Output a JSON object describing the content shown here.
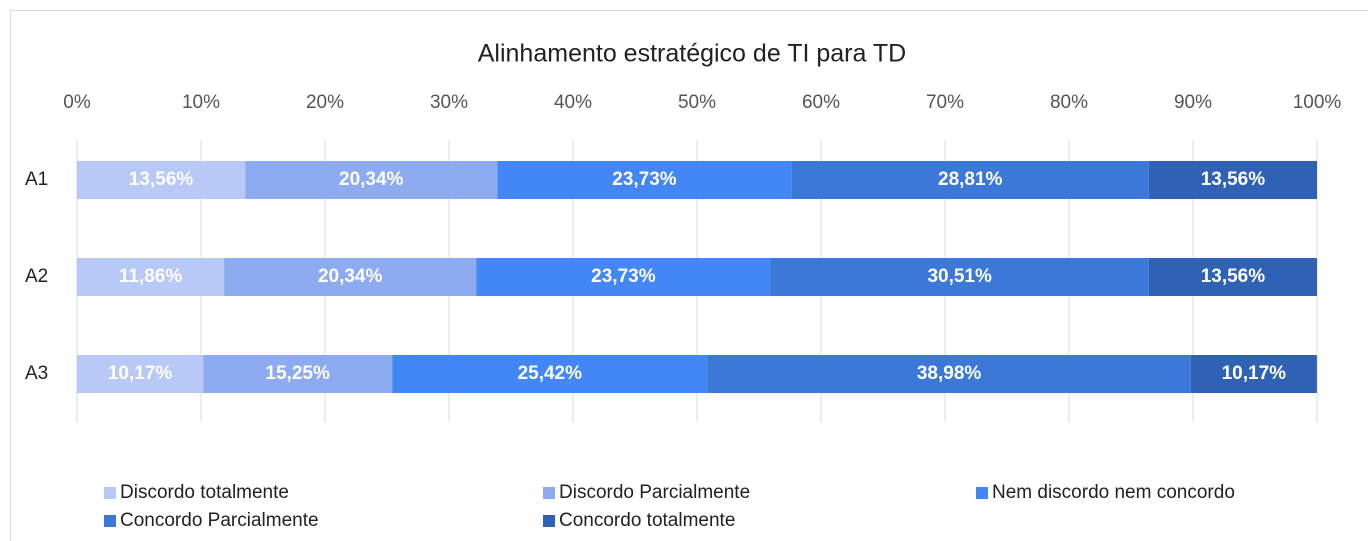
{
  "chart_data": {
    "type": "stacked_barh",
    "title": "Alinhamento estratégico de TI para TD",
    "categories": [
      "A1",
      "A2",
      "A3"
    ],
    "series": [
      {
        "name": "Discordo totalmente",
        "color": "#b8c8f7",
        "values": [
          13.56,
          11.86,
          10.17
        ],
        "value_labels": [
          "13,56%",
          "11,86%",
          "10,17%"
        ]
      },
      {
        "name": "Discordo Parcialmente",
        "color": "#8eabf2",
        "values": [
          20.34,
          20.34,
          15.25
        ],
        "value_labels": [
          "20,34%",
          "20,34%",
          "15,25%"
        ]
      },
      {
        "name": "Nem discordo nem concordo",
        "color": "#4287f5",
        "values": [
          23.73,
          23.73,
          25.42
        ],
        "value_labels": [
          "23,73%",
          "23,73%",
          "25,42%"
        ]
      },
      {
        "name": "Concordo Parcialmente",
        "color": "#3b78d8",
        "values": [
          28.81,
          30.51,
          38.98
        ],
        "value_labels": [
          "28,81%",
          "30,51%",
          "38,98%"
        ]
      },
      {
        "name": "Concordo totalmente",
        "color": "#2f62b5",
        "values": [
          13.56,
          13.56,
          10.17
        ],
        "value_labels": [
          "13,56%",
          "13,56%",
          "10,17%"
        ]
      }
    ],
    "xlim": [
      0,
      100
    ],
    "xticks": [
      {
        "value": 0,
        "label": "0%"
      },
      {
        "value": 10,
        "label": "10%"
      },
      {
        "value": 20,
        "label": "20%"
      },
      {
        "value": 30,
        "label": "30%"
      },
      {
        "value": 40,
        "label": "40%"
      },
      {
        "value": 50,
        "label": "50%"
      },
      {
        "value": 60,
        "label": "60%"
      },
      {
        "value": 70,
        "label": "70%"
      },
      {
        "value": 80,
        "label": "80%"
      },
      {
        "value": 90,
        "label": "90%"
      },
      {
        "value": 100,
        "label": "100%"
      }
    ],
    "grid": true,
    "legend": "bottom"
  }
}
